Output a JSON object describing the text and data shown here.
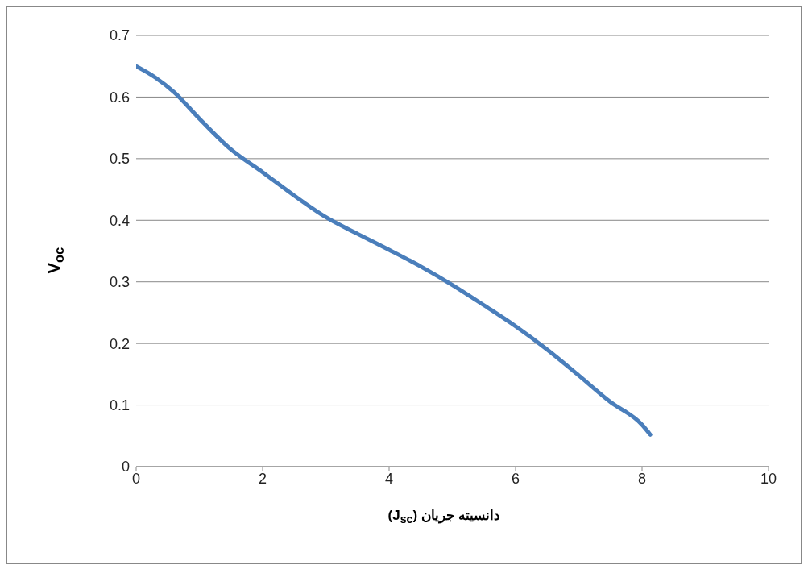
{
  "chart_data": {
    "type": "line",
    "xlabel": "دانسیته جریان (J$_{sc}$)",
    "ylabel": "V$_{oc}$",
    "x": [
      0,
      0.3,
      0.6,
      1.0,
      1.5,
      2,
      2.5,
      3,
      3.5,
      4,
      4.5,
      5,
      5.5,
      6,
      6.5,
      7,
      7.5,
      8,
      8.13
    ],
    "series": [
      {
        "color": "#4a7ebb",
        "values": [
          0.65,
          0.632,
          0.608,
          0.565,
          0.515,
          0.478,
          0.44,
          0.405,
          0.378,
          0.352,
          0.325,
          0.295,
          0.262,
          0.228,
          0.19,
          0.148,
          0.105,
          0.068,
          0.052
        ]
      }
    ],
    "xlim": [
      0,
      10
    ],
    "xticks": [
      0,
      2,
      4,
      6,
      8,
      10
    ],
    "ylim": [
      0,
      0.7
    ],
    "yticks": [
      0,
      0.1,
      0.2,
      0.3,
      0.4,
      0.5,
      0.6,
      0.7
    ],
    "grid": "y",
    "marker": "none",
    "line_style": "solid",
    "legend": false
  }
}
